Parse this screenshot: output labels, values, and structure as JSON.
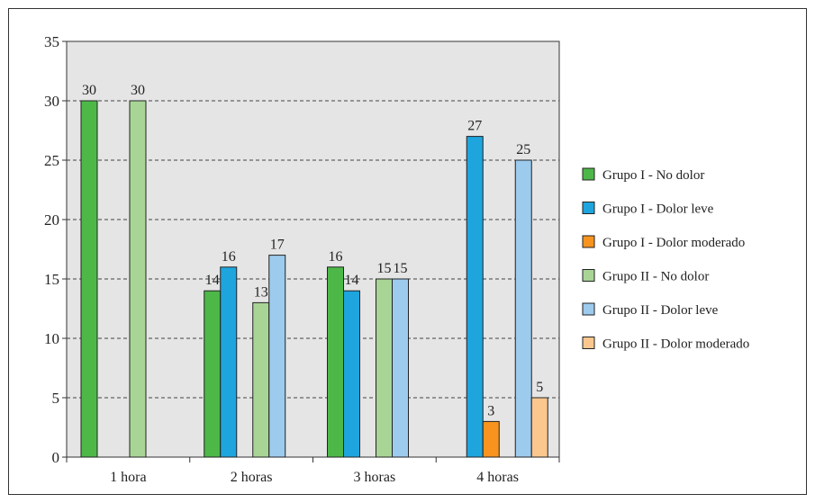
{
  "chart_data": {
    "type": "bar",
    "categories": [
      "1 hora",
      "2 horas",
      "3 horas",
      "4 horas"
    ],
    "ylim": [
      0,
      35
    ],
    "yticks": [
      0,
      5,
      10,
      15,
      20,
      25,
      30,
      35
    ],
    "grid": "dashed horizontal",
    "legend_position": "right",
    "series": [
      {
        "name": "Grupo I - No  dolor",
        "color": "#4db848",
        "values": [
          30,
          14,
          16,
          null
        ]
      },
      {
        "name": "Grupo I - Dolor leve",
        "color": "#1ea5de",
        "values": [
          null,
          16,
          14,
          27
        ]
      },
      {
        "name": "Grupo I - Dolor moderado",
        "color": "#f7931e",
        "values": [
          null,
          null,
          null,
          3
        ]
      },
      {
        "name": "Grupo II - No  dolor",
        "color": "#a8d596",
        "values": [
          30,
          13,
          15,
          null
        ]
      },
      {
        "name": "Grupo II - Dolor leve",
        "color": "#9ccbee",
        "values": [
          null,
          17,
          15,
          25
        ]
      },
      {
        "name": "Grupo II - Dolor moderado",
        "color": "#fbc78e",
        "values": [
          null,
          null,
          null,
          5
        ]
      }
    ]
  }
}
